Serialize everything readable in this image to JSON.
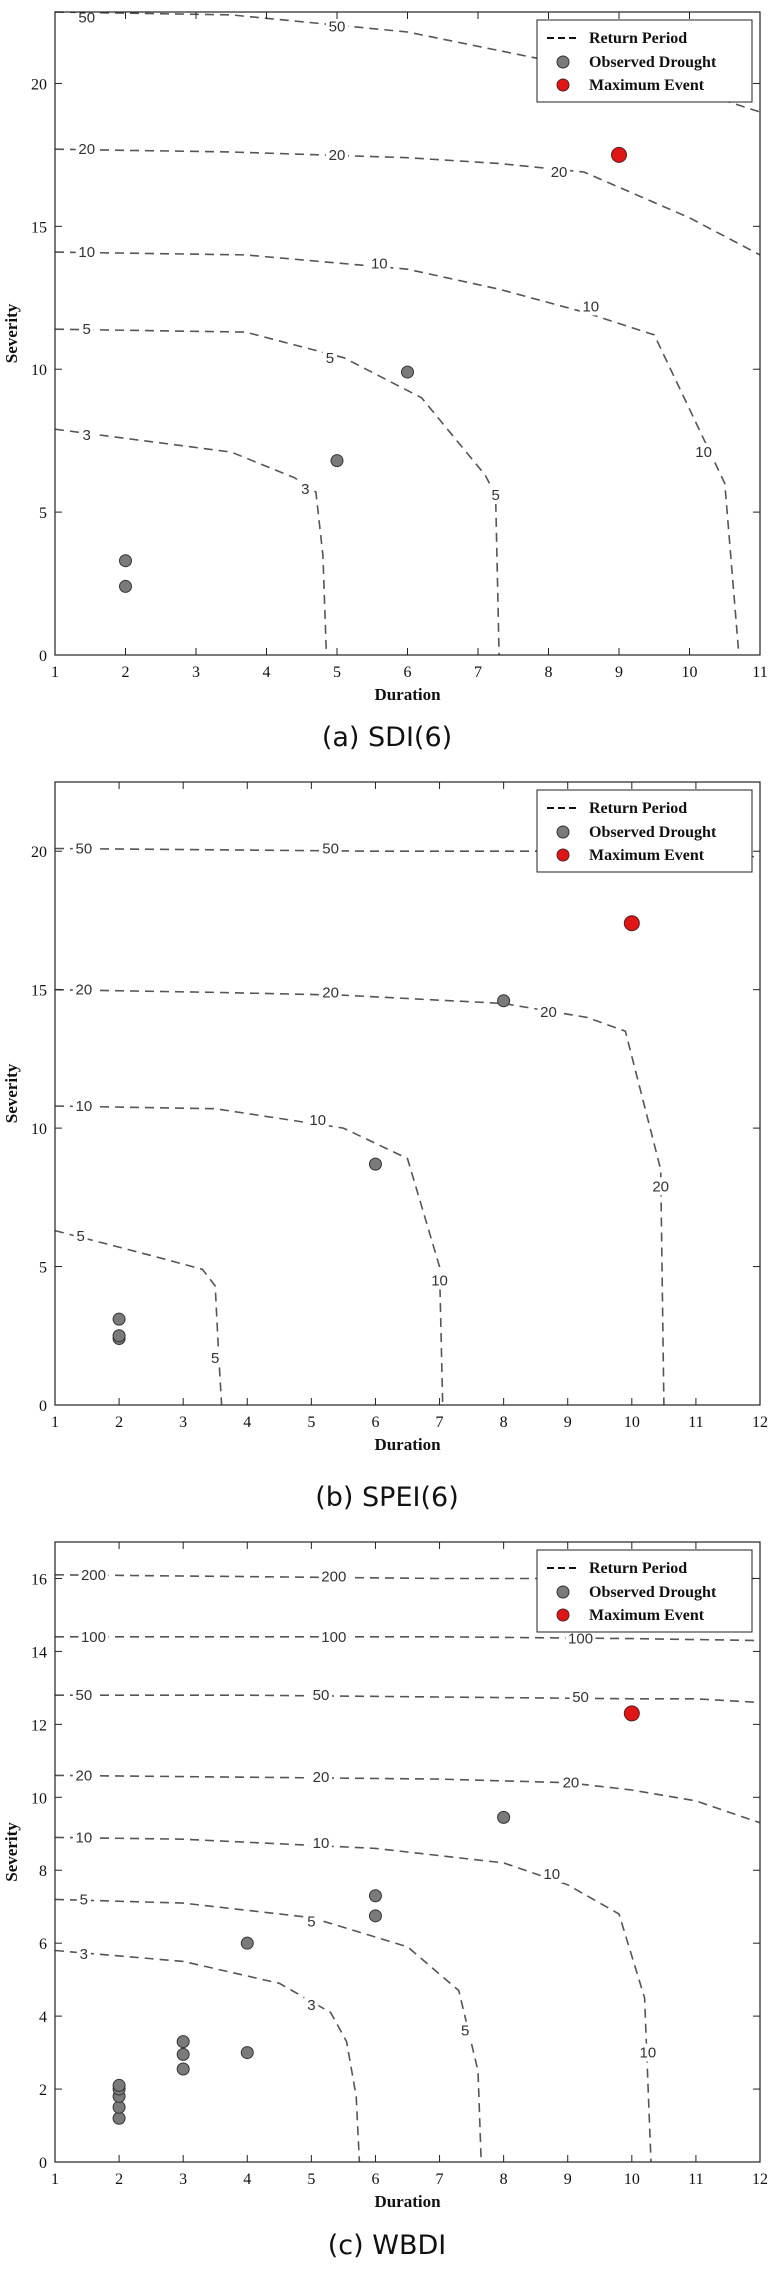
{
  "legend": {
    "return_period": "Return Period",
    "observed": "Observed Drought",
    "maximum": "Maximum Event"
  },
  "colors": {
    "observed_fill": "#7a7a7a",
    "maximum_fill": "#e01515",
    "contour": "#555555",
    "axis": "#222222"
  },
  "chart_data": [
    {
      "type": "scatter",
      "caption": "(a) SDI(6)",
      "xlabel": "Duration",
      "ylabel": "Severity",
      "xlim": [
        1,
        11
      ],
      "ylim": [
        0,
        22.5
      ],
      "xticks": [
        1,
        2,
        3,
        4,
        5,
        6,
        7,
        8,
        9,
        10,
        11
      ],
      "yticks": [
        0,
        5,
        10,
        15,
        20
      ],
      "legend_position": "top-right",
      "observed": [
        {
          "x": 2,
          "y": 2.4
        },
        {
          "x": 2,
          "y": 3.3
        },
        {
          "x": 5,
          "y": 6.8
        },
        {
          "x": 6,
          "y": 9.9
        }
      ],
      "maximum": [
        {
          "x": 9,
          "y": 17.5
        }
      ],
      "contours": [
        {
          "label": "3",
          "points": [
            [
              1,
              7.9
            ],
            [
              3.5,
              7.1
            ],
            [
              4.4,
              6.2
            ],
            [
              4.7,
              5.7
            ],
            [
              4.8,
              3.5
            ],
            [
              4.85,
              0
            ]
          ],
          "label_at": [
            [
              1.45,
              7.7
            ],
            [
              4.55,
              5.8
            ]
          ]
        },
        {
          "label": "5",
          "points": [
            [
              1,
              11.4
            ],
            [
              3.7,
              11.3
            ],
            [
              5.1,
              10.4
            ],
            [
              6.2,
              9.0
            ],
            [
              7.1,
              6.3
            ],
            [
              7.25,
              5.6
            ],
            [
              7.3,
              0
            ]
          ],
          "label_at": [
            [
              1.45,
              11.4
            ],
            [
              4.9,
              10.4
            ],
            [
              7.25,
              5.6
            ]
          ]
        },
        {
          "label": "10",
          "points": [
            [
              1,
              14.1
            ],
            [
              3.7,
              14.0
            ],
            [
              6.0,
              13.5
            ],
            [
              7.3,
              12.8
            ],
            [
              8.5,
              12.0
            ],
            [
              9.5,
              11.2
            ],
            [
              10.5,
              6.0
            ],
            [
              10.7,
              0
            ]
          ],
          "label_at": [
            [
              1.45,
              14.1
            ],
            [
              5.6,
              13.7
            ],
            [
              8.6,
              12.2
            ],
            [
              10.2,
              7.1
            ]
          ]
        },
        {
          "label": "20",
          "points": [
            [
              1,
              17.7
            ],
            [
              3.5,
              17.6
            ],
            [
              6.0,
              17.4
            ],
            [
              7.3,
              17.2
            ],
            [
              8.5,
              16.9
            ],
            [
              10.0,
              15.3
            ],
            [
              11.0,
              14.0
            ]
          ],
          "label_at": [
            [
              1.45,
              17.7
            ],
            [
              5.0,
              17.5
            ],
            [
              8.15,
              16.9
            ]
          ]
        },
        {
          "label": "50",
          "points": [
            [
              1,
              22.5
            ],
            [
              3.5,
              22.4
            ],
            [
              6.0,
              21.8
            ],
            [
              8.0,
              20.8
            ],
            [
              10.0,
              19.8
            ],
            [
              11.0,
              19.0
            ]
          ],
          "label_at": [
            [
              1.45,
              22.3
            ],
            [
              5.0,
              22.0
            ]
          ]
        }
      ]
    },
    {
      "type": "scatter",
      "caption": "(b) SPEI(6)",
      "xlabel": "Duration",
      "ylabel": "Severity",
      "xlim": [
        1,
        12
      ],
      "ylim": [
        0,
        22.5
      ],
      "xticks": [
        1,
        2,
        3,
        4,
        5,
        6,
        7,
        8,
        9,
        10,
        11,
        12
      ],
      "yticks": [
        0,
        5,
        10,
        15,
        20
      ],
      "legend_position": "top-right",
      "observed": [
        {
          "x": 2,
          "y": 2.4
        },
        {
          "x": 2,
          "y": 2.5
        },
        {
          "x": 2,
          "y": 3.1
        },
        {
          "x": 6,
          "y": 8.7
        },
        {
          "x": 8,
          "y": 14.6
        }
      ],
      "maximum": [
        {
          "x": 10,
          "y": 17.4
        }
      ],
      "contours": [
        {
          "label": "5",
          "points": [
            [
              1,
              6.3
            ],
            [
              2.5,
              5.4
            ],
            [
              3.3,
              4.9
            ],
            [
              3.5,
              4.3
            ],
            [
              3.55,
              2.0
            ],
            [
              3.6,
              0
            ]
          ],
          "label_at": [
            [
              1.4,
              6.1
            ],
            [
              3.5,
              1.7
            ]
          ]
        },
        {
          "label": "10",
          "points": [
            [
              1,
              10.8
            ],
            [
              3.5,
              10.7
            ],
            [
              5.5,
              10.0
            ],
            [
              6.5,
              8.9
            ],
            [
              7.0,
              5.0
            ],
            [
              7.05,
              0
            ]
          ],
          "label_at": [
            [
              1.45,
              10.8
            ],
            [
              5.1,
              10.3
            ],
            [
              7.0,
              4.5
            ]
          ]
        },
        {
          "label": "20",
          "points": [
            [
              1,
              15.0
            ],
            [
              3.5,
              14.9
            ],
            [
              5.5,
              14.8
            ],
            [
              8.0,
              14.5
            ],
            [
              9.3,
              14.0
            ],
            [
              9.9,
              13.5
            ],
            [
              10.45,
              8.5
            ],
            [
              10.5,
              0
            ]
          ],
          "label_at": [
            [
              1.45,
              15.0
            ],
            [
              5.3,
              14.9
            ],
            [
              8.7,
              14.2
            ],
            [
              10.45,
              7.9
            ]
          ]
        },
        {
          "label": "50",
          "points": [
            [
              1,
              20.1
            ],
            [
              3.5,
              20.05
            ],
            [
              6.0,
              20.0
            ],
            [
              9.0,
              20.0
            ],
            [
              12.0,
              19.8
            ]
          ],
          "label_at": [
            [
              1.45,
              20.1
            ],
            [
              5.3,
              20.1
            ]
          ]
        }
      ]
    },
    {
      "type": "scatter",
      "caption": "(c) WBDI",
      "xlabel": "Duration",
      "ylabel": "Severity",
      "xlim": [
        1,
        12
      ],
      "ylim": [
        0,
        17
      ],
      "xticks": [
        1,
        2,
        3,
        4,
        5,
        6,
        7,
        8,
        9,
        10,
        11,
        12
      ],
      "yticks": [
        0,
        2,
        4,
        6,
        8,
        10,
        12,
        14,
        16
      ],
      "legend_position": "top-right",
      "observed": [
        {
          "x": 2,
          "y": 1.2
        },
        {
          "x": 2,
          "y": 1.5
        },
        {
          "x": 2,
          "y": 1.8
        },
        {
          "x": 2,
          "y": 2.0
        },
        {
          "x": 2,
          "y": 2.1
        },
        {
          "x": 3,
          "y": 2.55
        },
        {
          "x": 3,
          "y": 2.95
        },
        {
          "x": 3,
          "y": 3.3
        },
        {
          "x": 4,
          "y": 3.0
        },
        {
          "x": 4,
          "y": 6.0
        },
        {
          "x": 6,
          "y": 6.75
        },
        {
          "x": 6,
          "y": 7.3
        },
        {
          "x": 8,
          "y": 9.45
        }
      ],
      "maximum": [
        {
          "x": 10,
          "y": 12.3
        }
      ],
      "contours": [
        {
          "label": "3",
          "points": [
            [
              1,
              5.8
            ],
            [
              3.0,
              5.5
            ],
            [
              4.5,
              4.9
            ],
            [
              5.3,
              4.1
            ],
            [
              5.55,
              3.3
            ],
            [
              5.7,
              1.8
            ],
            [
              5.75,
              0
            ]
          ],
          "label_at": [
            [
              1.45,
              5.7
            ],
            [
              5.0,
              4.3
            ]
          ]
        },
        {
          "label": "5",
          "points": [
            [
              1,
              7.2
            ],
            [
              3.0,
              7.1
            ],
            [
              5.0,
              6.7
            ],
            [
              6.5,
              5.9
            ],
            [
              7.3,
              4.7
            ],
            [
              7.6,
              2.5
            ],
            [
              7.65,
              0
            ]
          ],
          "label_at": [
            [
              1.45,
              7.2
            ],
            [
              5.0,
              6.6
            ],
            [
              7.4,
              3.6
            ]
          ]
        },
        {
          "label": "10",
          "points": [
            [
              1,
              8.9
            ],
            [
              3.0,
              8.85
            ],
            [
              6.0,
              8.6
            ],
            [
              8.0,
              8.2
            ],
            [
              9.0,
              7.6
            ],
            [
              9.8,
              6.8
            ],
            [
              10.2,
              4.5
            ],
            [
              10.3,
              0
            ]
          ],
          "label_at": [
            [
              1.45,
              8.9
            ],
            [
              5.15,
              8.75
            ],
            [
              8.75,
              7.9
            ],
            [
              10.25,
              3.0
            ]
          ]
        },
        {
          "label": "20",
          "points": [
            [
              1,
              10.6
            ],
            [
              4.0,
              10.55
            ],
            [
              7.0,
              10.5
            ],
            [
              9.0,
              10.4
            ],
            [
              10.0,
              10.2
            ],
            [
              11.0,
              9.9
            ],
            [
              12.0,
              9.3
            ]
          ],
          "label_at": [
            [
              1.45,
              10.6
            ],
            [
              5.15,
              10.55
            ],
            [
              9.05,
              10.4
            ]
          ]
        },
        {
          "label": "50",
          "points": [
            [
              1,
              12.8
            ],
            [
              4.0,
              12.8
            ],
            [
              7.0,
              12.75
            ],
            [
              10.0,
              12.7
            ],
            [
              11.0,
              12.7
            ],
            [
              12.0,
              12.6
            ]
          ],
          "label_at": [
            [
              1.45,
              12.8
            ],
            [
              5.15,
              12.8
            ],
            [
              9.2,
              12.75
            ]
          ]
        },
        {
          "label": "100",
          "points": [
            [
              1,
              14.4
            ],
            [
              4.0,
              14.4
            ],
            [
              7.0,
              14.4
            ],
            [
              10.0,
              14.35
            ],
            [
              12.0,
              14.3
            ]
          ],
          "label_at": [
            [
              1.6,
              14.4
            ],
            [
              5.35,
              14.4
            ],
            [
              9.2,
              14.35
            ]
          ]
        },
        {
          "label": "200",
          "points": [
            [
              1,
              16.1
            ],
            [
              4.0,
              16.05
            ],
            [
              7.0,
              16.0
            ],
            [
              10.0,
              16.0
            ],
            [
              12.0,
              16.0
            ]
          ],
          "label_at": [
            [
              1.6,
              16.1
            ],
            [
              5.35,
              16.05
            ]
          ]
        }
      ]
    }
  ]
}
